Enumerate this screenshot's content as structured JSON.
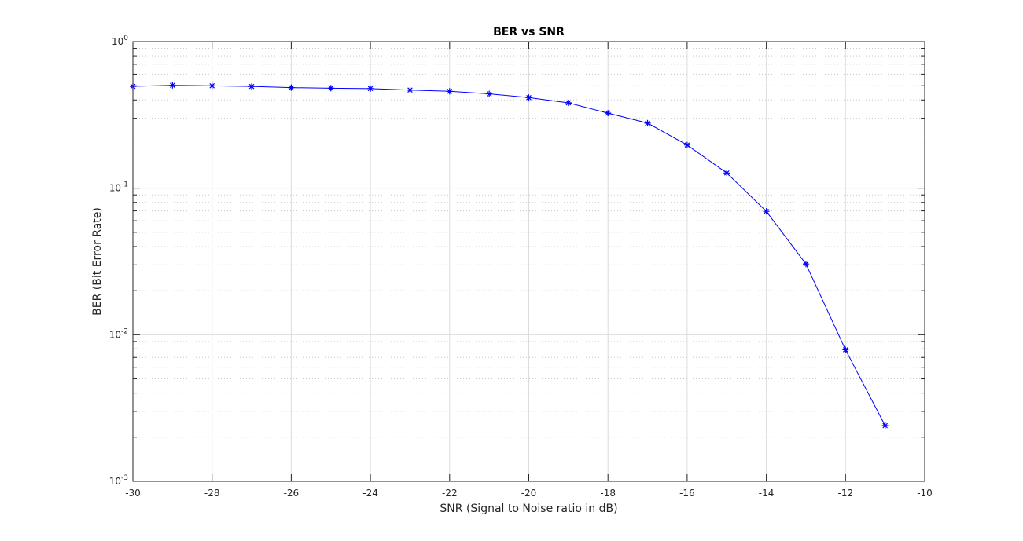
{
  "chart_data": {
    "type": "line",
    "title": "BER vs SNR",
    "xlabel": "SNR (Signal to Noise ratio in dB)",
    "ylabel": "BER (Bit Error Rate)",
    "xlim": [
      -30,
      -10
    ],
    "ylim": [
      0.001,
      1
    ],
    "yscale": "log",
    "grid": true,
    "minor_grid": true,
    "x_ticks": [
      "-30",
      "-28",
      "-26",
      "-24",
      "-22",
      "-20",
      "-18",
      "-16",
      "-14",
      "-12",
      "-10"
    ],
    "y_ticks": [
      {
        "base": "10",
        "exp": "-3"
      },
      {
        "base": "10",
        "exp": "-2"
      },
      {
        "base": "10",
        "exp": "-1"
      },
      {
        "base": "10",
        "exp": "0"
      }
    ],
    "series": [
      {
        "color": "#0000ff",
        "marker": "asterisk",
        "x": [
          -30,
          -29,
          -28,
          -27,
          -26,
          -25,
          -24,
          -23,
          -22,
          -21,
          -20,
          -19,
          -18,
          -17,
          -16,
          -15,
          -14,
          -13,
          -12,
          -11
        ],
        "y": [
          0.495,
          0.503,
          0.499,
          0.494,
          0.485,
          0.481,
          0.478,
          0.467,
          0.458,
          0.44,
          0.415,
          0.382,
          0.325,
          0.278,
          0.197,
          0.127,
          0.0695,
          0.0304,
          0.0079,
          0.0024
        ]
      }
    ]
  }
}
